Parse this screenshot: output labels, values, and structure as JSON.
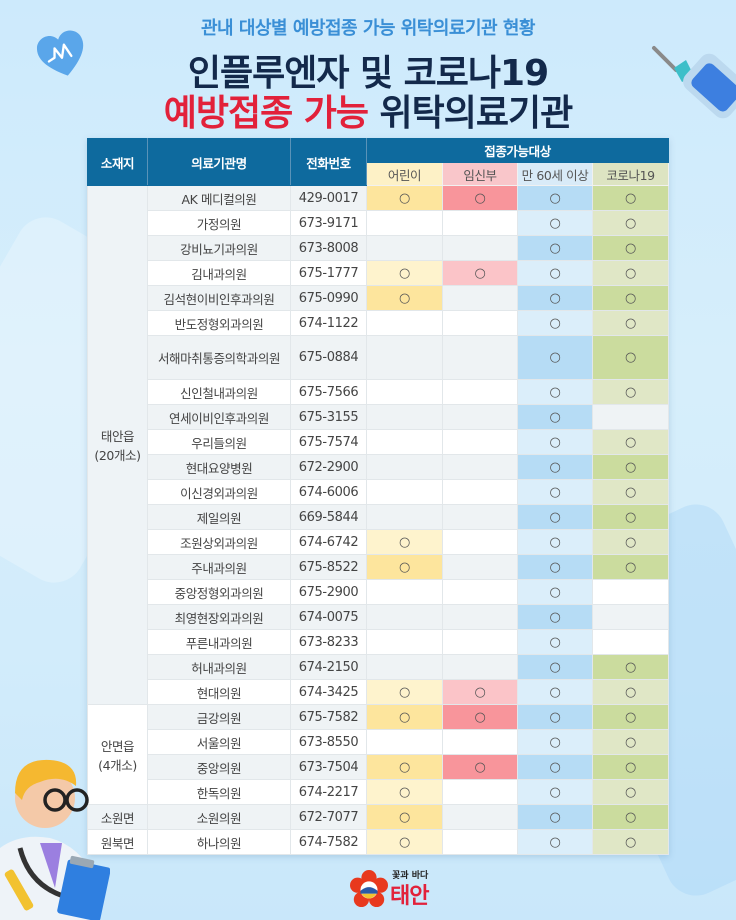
{
  "header": {
    "subtitle": "관내 대상별 예방접종 가능 위탁의료기관 현황",
    "title_line1": "인플루엔자 및 코로나19",
    "title_line2_red": "예방접종 가능",
    "title_line2_dark": "위탁의료기관"
  },
  "colors": {
    "header_bg": "#0e6a9e",
    "title_dark": "#13294b",
    "title_red": "#e2213a",
    "subtitle_blue": "#3a8fd6",
    "children": "#fde59d",
    "pregnant": "#f8959b",
    "over60": "#b6dcf5",
    "covid": "#cbdc9e"
  },
  "table": {
    "headers": {
      "region": "소재지",
      "name": "의료기관명",
      "phone": "전화번호",
      "group": "접종가능대상",
      "children": "어린이",
      "pregnant": "임신부",
      "over60": "만 60세 이상",
      "covid": "코로나19"
    },
    "mark": "○",
    "regions": [
      {
        "label_line1": "태안읍",
        "label_line2": "(20개소)",
        "rowspan": 20
      },
      {
        "label_line1": "안면읍",
        "label_line2": "(4개소)",
        "rowspan": 4
      },
      {
        "label_line1": "소원면",
        "label_line2": "",
        "rowspan": 1
      },
      {
        "label_line1": "원북면",
        "label_line2": "",
        "rowspan": 1
      }
    ],
    "rows": [
      {
        "name": "AK 메디컬의원",
        "phone": "429-0017",
        "children": "○",
        "pregnant": "○",
        "over60": "○",
        "covid": "○"
      },
      {
        "name": "가정의원",
        "phone": "673-9171",
        "children": "",
        "pregnant": "",
        "over60": "○",
        "covid": "○"
      },
      {
        "name": "강비뇨기과의원",
        "phone": "673-8008",
        "children": "",
        "pregnant": "",
        "over60": "○",
        "covid": "○"
      },
      {
        "name": "김내과의원",
        "phone": "675-1777",
        "children": "○",
        "pregnant": "○",
        "over60": "○",
        "covid": "○"
      },
      {
        "name": "김석현이비인후과의원",
        "phone": "675-0990",
        "children": "○",
        "pregnant": "",
        "over60": "○",
        "covid": "○"
      },
      {
        "name": "반도정형외과의원",
        "phone": "674-1122",
        "children": "",
        "pregnant": "",
        "over60": "○",
        "covid": "○"
      },
      {
        "name": "서해마취통증의학과의원",
        "phone": "675-0884",
        "children": "",
        "pregnant": "",
        "over60": "○",
        "covid": "○"
      },
      {
        "name": "신인철내과의원",
        "phone": "675-7566",
        "children": "",
        "pregnant": "",
        "over60": "○",
        "covid": "○"
      },
      {
        "name": "연세이비인후과의원",
        "phone": "675-3155",
        "children": "",
        "pregnant": "",
        "over60": "○",
        "covid": ""
      },
      {
        "name": "우리들의원",
        "phone": "675-7574",
        "children": "",
        "pregnant": "",
        "over60": "○",
        "covid": "○"
      },
      {
        "name": "현대요양병원",
        "phone": "672-2900",
        "children": "",
        "pregnant": "",
        "over60": "○",
        "covid": "○"
      },
      {
        "name": "이신경외과의원",
        "phone": "674-6006",
        "children": "",
        "pregnant": "",
        "over60": "○",
        "covid": "○"
      },
      {
        "name": "제일의원",
        "phone": "669-5844",
        "children": "",
        "pregnant": "",
        "over60": "○",
        "covid": "○"
      },
      {
        "name": "조원상외과의원",
        "phone": "674-6742",
        "children": "○",
        "pregnant": "",
        "over60": "○",
        "covid": "○"
      },
      {
        "name": "주내과의원",
        "phone": "675-8522",
        "children": "○",
        "pregnant": "",
        "over60": "○",
        "covid": "○"
      },
      {
        "name": "중앙정형외과의원",
        "phone": "675-2900",
        "children": "",
        "pregnant": "",
        "over60": "○",
        "covid": ""
      },
      {
        "name": "최영현장외과의원",
        "phone": "674-0075",
        "children": "",
        "pregnant": "",
        "over60": "○",
        "covid": ""
      },
      {
        "name": "푸른내과의원",
        "phone": "673-8233",
        "children": "",
        "pregnant": "",
        "over60": "○",
        "covid": ""
      },
      {
        "name": "허내과의원",
        "phone": "674-2150",
        "children": "",
        "pregnant": "",
        "over60": "○",
        "covid": "○"
      },
      {
        "name": "현대의원",
        "phone": "674-3425",
        "children": "○",
        "pregnant": "○",
        "over60": "○",
        "covid": "○"
      },
      {
        "name": "금강의원",
        "phone": "675-7582",
        "children": "○",
        "pregnant": "○",
        "over60": "○",
        "covid": "○"
      },
      {
        "name": "서울의원",
        "phone": "673-8550",
        "children": "",
        "pregnant": "",
        "over60": "○",
        "covid": "○"
      },
      {
        "name": "중앙의원",
        "phone": "673-7504",
        "children": "○",
        "pregnant": "○",
        "over60": "○",
        "covid": "○"
      },
      {
        "name": "한독의원",
        "phone": "674-2217",
        "children": "○",
        "pregnant": "",
        "over60": "○",
        "covid": "○"
      },
      {
        "name": "소원의원",
        "phone": "672-7077",
        "children": "○",
        "pregnant": "",
        "over60": "○",
        "covid": "○"
      },
      {
        "name": "하나의원",
        "phone": "674-7582",
        "children": "○",
        "pregnant": "",
        "over60": "○",
        "covid": "○"
      }
    ]
  },
  "footer": {
    "logo_small": "꽃과 바다",
    "logo_big": "태안"
  },
  "icons": {
    "heart": "heart-pulse-icon",
    "syringe": "syringe-icon",
    "doctor": "doctor-illustration",
    "logo": "taean-flower-logo"
  }
}
